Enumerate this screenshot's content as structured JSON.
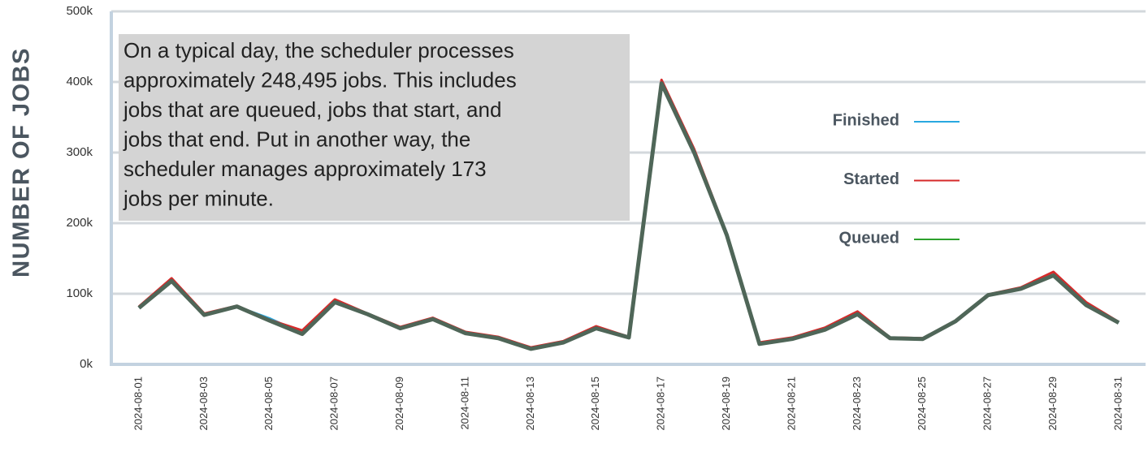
{
  "chart_data": {
    "type": "line",
    "y_axis_label": "NUMBER OF JOBS",
    "annotation": [
      "On a typical day, the scheduler processes",
      "approximately 248,495 jobs. This includes",
      "jobs that are queued, jobs that start, and",
      "jobs that end. Put in another way, the",
      "scheduler manages approximately 173",
      "jobs per minute."
    ],
    "categories": [
      "2024-08-01",
      null,
      "2024-08-03",
      null,
      "2024-08-05",
      null,
      "2024-08-07",
      null,
      "2024-08-09",
      null,
      "2024-08-11",
      null,
      "2024-08-13",
      null,
      "2024-08-15",
      null,
      "2024-08-17",
      null,
      "2024-08-19",
      null,
      "2024-08-21",
      null,
      "2024-08-23",
      null,
      "2024-08-25",
      null,
      "2024-08-27",
      null,
      "2024-08-29",
      null,
      "2024-08-31"
    ],
    "series": [
      {
        "name": "Finished",
        "color": "#29a8e0",
        "values": [
          80000,
          119000,
          70000,
          82000,
          65000,
          44000,
          88000,
          71000,
          51000,
          64000,
          44000,
          37000,
          22000,
          31000,
          51000,
          38000,
          398000,
          300000,
          183000,
          29000,
          36000,
          49000,
          71000,
          37000,
          36000,
          61000,
          98000,
          107000,
          126000,
          84000,
          59000
        ]
      },
      {
        "name": "Started",
        "color": "#d62a2a",
        "values": [
          82000,
          122000,
          72000,
          83000,
          63000,
          48000,
          92000,
          72000,
          53000,
          66000,
          46000,
          39000,
          24000,
          33000,
          54000,
          39000,
          403000,
          305000,
          185000,
          31000,
          38000,
          52000,
          75000,
          38000,
          37000,
          62000,
          99000,
          109000,
          131000,
          88000,
          60000
        ]
      },
      {
        "name": "Queued",
        "color": "#2ca02c",
        "values": [
          80000,
          118000,
          70000,
          82000,
          62000,
          43000,
          88000,
          71000,
          51000,
          64000,
          44000,
          37000,
          22000,
          31000,
          51000,
          38000,
          398000,
          300000,
          183000,
          29000,
          36000,
          49000,
          71000,
          37000,
          36000,
          61000,
          98000,
          107000,
          126000,
          84000,
          59000
        ]
      }
    ],
    "ylim": [
      0,
      500000
    ],
    "yticks": [
      {
        "value": 0,
        "label": "0k"
      },
      {
        "value": 100000,
        "label": "100k"
      },
      {
        "value": 200000,
        "label": "200k"
      },
      {
        "value": 300000,
        "label": "300k"
      },
      {
        "value": 400000,
        "label": "400k"
      },
      {
        "value": 500000,
        "label": "500k"
      }
    ],
    "grid": true
  }
}
